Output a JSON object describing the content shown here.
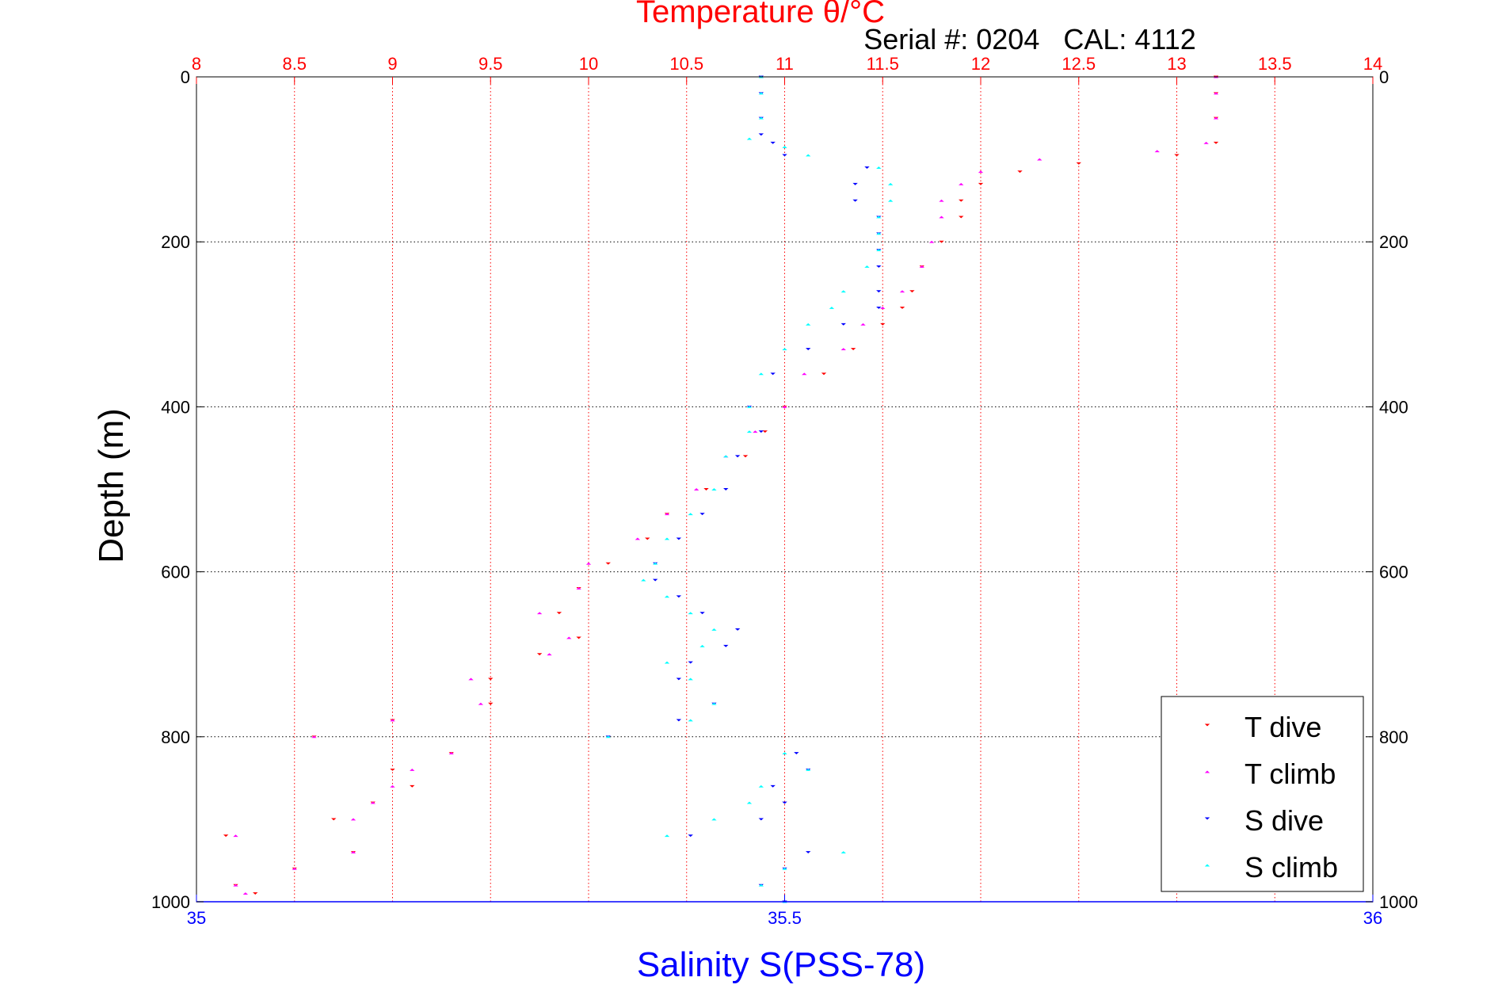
{
  "chart_data": {
    "type": "scatter",
    "title": "Temperature θ/°C",
    "subtitle": "Serial #: 0204   CAL: 4112",
    "ylabel": "Depth (m)",
    "xlabel_bottom": "Salinity S(PSS-78)",
    "y_reversed": true,
    "ylim": [
      0,
      1000
    ],
    "xlim_top": [
      8,
      14
    ],
    "xlim_bottom": [
      35,
      36
    ],
    "y_ticks": [
      "0",
      "200",
      "400",
      "600",
      "800",
      "1000"
    ],
    "x_top_ticks": [
      "8",
      "8.5",
      "9",
      "9.5",
      "10",
      "10.5",
      "11",
      "11.5",
      "12",
      "12.5",
      "13",
      "13.5",
      "14"
    ],
    "x_bottom_ticks": [
      "35",
      "35.5",
      "36"
    ],
    "grid": true,
    "legend_position": "bottom-right",
    "colors": {
      "top_axis": "#ff0000",
      "bottom_axis": "#0000ff",
      "left_axis": "#000000"
    },
    "series": [
      {
        "name": "T dive",
        "axis": "top",
        "marker": "triangle-down",
        "color": "#ff0000",
        "depth": [
          0,
          20,
          50,
          80,
          95,
          105,
          115,
          130,
          150,
          170,
          200,
          230,
          260,
          280,
          300,
          330,
          360,
          400,
          430,
          460,
          500,
          530,
          560,
          590,
          620,
          650,
          680,
          700,
          730,
          760,
          780,
          800,
          820,
          840,
          860,
          880,
          900,
          920,
          940,
          960,
          980,
          990
        ],
        "values": [
          13.2,
          13.2,
          13.2,
          13.2,
          13.0,
          12.5,
          12.2,
          12.0,
          11.9,
          11.9,
          11.8,
          11.7,
          11.65,
          11.6,
          11.5,
          11.35,
          11.2,
          11.0,
          10.9,
          10.8,
          10.6,
          10.4,
          10.3,
          10.1,
          9.95,
          9.85,
          9.95,
          9.75,
          9.5,
          9.5,
          9.0,
          8.6,
          9.3,
          9.0,
          9.1,
          8.9,
          8.7,
          8.15,
          8.8,
          8.5,
          8.2,
          8.3
        ]
      },
      {
        "name": "T climb",
        "axis": "top",
        "marker": "triangle-up",
        "color": "#ff00ff",
        "depth": [
          0,
          20,
          50,
          80,
          90,
          100,
          115,
          130,
          150,
          170,
          200,
          230,
          260,
          280,
          300,
          330,
          360,
          400,
          430,
          460,
          500,
          530,
          560,
          590,
          620,
          650,
          680,
          700,
          730,
          760,
          780,
          800,
          820,
          840,
          860,
          880,
          900,
          920,
          940,
          960,
          980,
          990
        ],
        "values": [
          13.2,
          13.2,
          13.2,
          13.15,
          12.9,
          12.3,
          12.0,
          11.9,
          11.8,
          11.8,
          11.75,
          11.7,
          11.6,
          11.5,
          11.4,
          11.3,
          11.1,
          11.0,
          10.85,
          10.7,
          10.55,
          10.4,
          10.25,
          10.0,
          9.95,
          9.75,
          9.9,
          9.8,
          9.4,
          9.45,
          9.0,
          8.6,
          9.3,
          9.1,
          9.0,
          8.9,
          8.8,
          8.2,
          8.8,
          8.5,
          8.2,
          8.25
        ]
      },
      {
        "name": "S dive",
        "axis": "bottom",
        "marker": "triangle-down",
        "color": "#0000ff",
        "depth": [
          0,
          20,
          50,
          70,
          80,
          95,
          110,
          130,
          150,
          170,
          190,
          210,
          230,
          260,
          280,
          300,
          330,
          360,
          400,
          430,
          460,
          500,
          530,
          560,
          590,
          610,
          630,
          650,
          670,
          690,
          710,
          730,
          760,
          780,
          800,
          820,
          840,
          860,
          880,
          900,
          920,
          940,
          960,
          980,
          1000
        ],
        "values": [
          35.48,
          35.48,
          35.48,
          35.48,
          35.49,
          35.5,
          35.57,
          35.56,
          35.56,
          35.58,
          35.58,
          35.58,
          35.58,
          35.58,
          35.58,
          35.55,
          35.52,
          35.49,
          35.47,
          35.48,
          35.46,
          35.45,
          35.43,
          35.41,
          35.39,
          35.39,
          35.41,
          35.43,
          35.46,
          35.45,
          35.42,
          35.41,
          35.44,
          35.41,
          35.35,
          35.51,
          35.52,
          35.49,
          35.5,
          35.48,
          35.42,
          35.52,
          35.5,
          35.48,
          35.5
        ]
      },
      {
        "name": "S climb",
        "axis": "bottom",
        "marker": "triangle-up",
        "color": "#00ffff",
        "depth": [
          0,
          20,
          50,
          75,
          85,
          95,
          110,
          130,
          150,
          170,
          190,
          210,
          230,
          260,
          280,
          300,
          330,
          360,
          400,
          430,
          460,
          500,
          530,
          560,
          590,
          610,
          630,
          650,
          670,
          690,
          710,
          730,
          760,
          780,
          800,
          820,
          840,
          860,
          880,
          900,
          920,
          940,
          960,
          980,
          1000
        ],
        "values": [
          35.48,
          35.48,
          35.48,
          35.47,
          35.5,
          35.52,
          35.58,
          35.59,
          35.59,
          35.58,
          35.58,
          35.58,
          35.57,
          35.55,
          35.54,
          35.52,
          35.5,
          35.48,
          35.47,
          35.47,
          35.45,
          35.44,
          35.42,
          35.4,
          35.39,
          35.38,
          35.4,
          35.42,
          35.44,
          35.43,
          35.4,
          35.42,
          35.44,
          35.42,
          35.35,
          35.5,
          35.52,
          35.48,
          35.47,
          35.44,
          35.4,
          35.55,
          35.5,
          35.48,
          35.5
        ]
      }
    ]
  }
}
